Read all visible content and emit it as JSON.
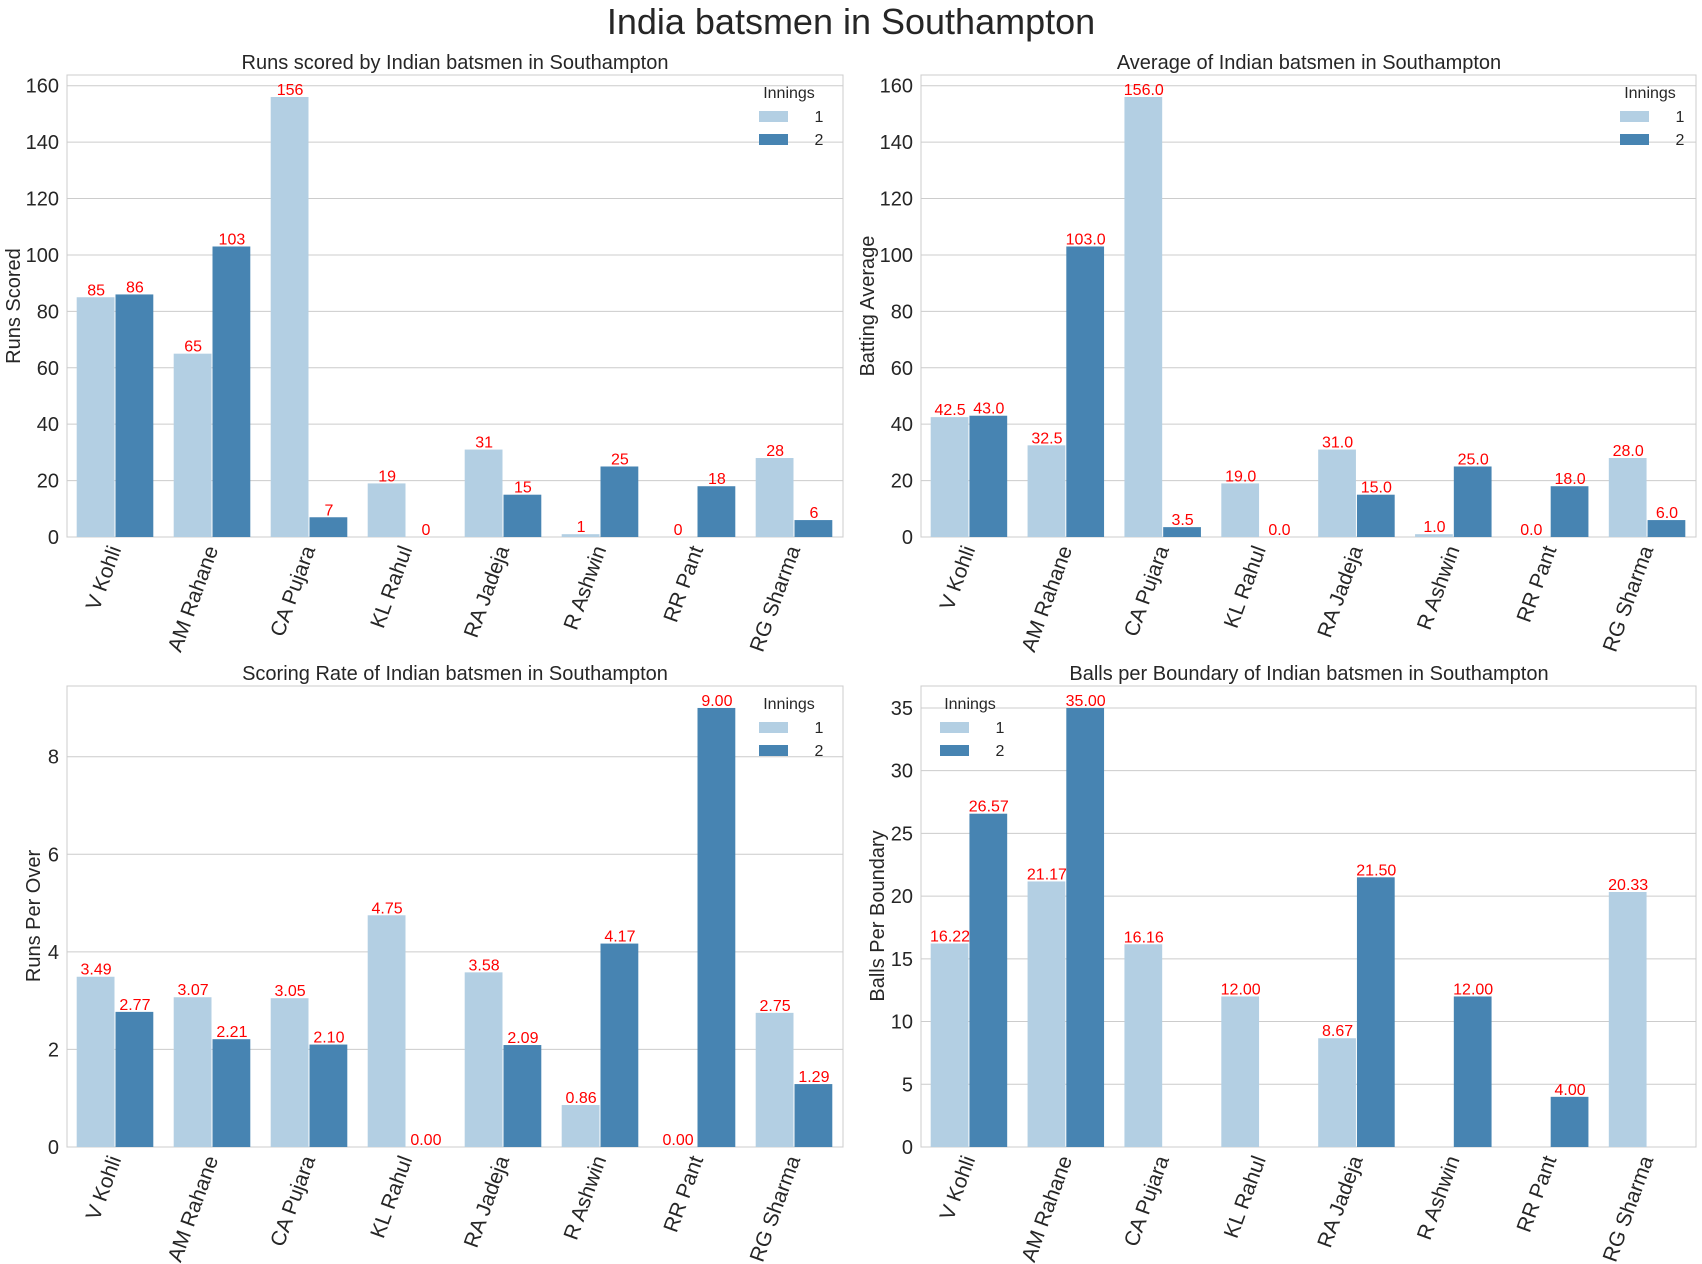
{
  "figure": {
    "title": "India batsmen in Southampton"
  },
  "colors": {
    "innings_1": "#b3cfe3",
    "innings_2": "#4784b2",
    "data_label": "#ff0000",
    "grid": "#cccccc"
  },
  "chart_data": [
    {
      "type": "bar",
      "title": "Runs scored by Indian batsmen in Southampton",
      "xlabel": "",
      "ylabel": "Runs Scored",
      "ylim": [
        0,
        163.8
      ],
      "yticks": [
        0,
        20,
        40,
        60,
        80,
        100,
        120,
        140,
        160
      ],
      "grid": true,
      "legend_title": "Innings",
      "legend_position": "top-right",
      "categories": [
        "V Kohli",
        "AM Rahane",
        "CA Pujara",
        "KL Rahul",
        "RA Jadeja",
        "R Ashwin",
        "RR Pant",
        "RG Sharma"
      ],
      "series": [
        {
          "name": "1",
          "values": [
            85,
            65,
            156,
            19,
            31,
            1,
            0,
            28
          ],
          "labels": [
            "85",
            "65",
            "156",
            "19",
            "31",
            "1",
            "0",
            "28"
          ]
        },
        {
          "name": "2",
          "values": [
            86,
            103,
            7,
            0,
            15,
            25,
            18,
            6
          ],
          "labels": [
            "86",
            "103",
            "7",
            "0",
            "15",
            "25",
            "18",
            "6"
          ]
        }
      ]
    },
    {
      "type": "bar",
      "title": "Average of Indian batsmen in Southampton",
      "xlabel": "",
      "ylabel": "Batting Average",
      "ylim": [
        0,
        163.8
      ],
      "yticks": [
        0,
        20,
        40,
        60,
        80,
        100,
        120,
        140,
        160
      ],
      "grid": true,
      "legend_title": "Innings",
      "legend_position": "top-right",
      "categories": [
        "V Kohli",
        "AM Rahane",
        "CA Pujara",
        "KL Rahul",
        "RA Jadeja",
        "R Ashwin",
        "RR Pant",
        "RG Sharma"
      ],
      "series": [
        {
          "name": "1",
          "values": [
            42.5,
            32.5,
            156.0,
            19.0,
            31.0,
            1.0,
            0.0,
            28.0
          ],
          "labels": [
            "42.5",
            "32.5",
            "156.0",
            "19.0",
            "31.0",
            "1.0",
            "0.0",
            "28.0"
          ]
        },
        {
          "name": "2",
          "values": [
            43.0,
            103.0,
            3.5,
            0.0,
            15.0,
            25.0,
            18.0,
            6.0
          ],
          "labels": [
            "43.0",
            "103.0",
            "3.5",
            "0.0",
            "15.0",
            "25.0",
            "18.0",
            "6.0"
          ]
        }
      ]
    },
    {
      "type": "bar",
      "title": "Scoring Rate of Indian batsmen in Southampton",
      "xlabel": "",
      "ylabel": "Runs Per Over",
      "ylim": [
        0,
        9.45
      ],
      "yticks": [
        0,
        2,
        4,
        6,
        8
      ],
      "grid": true,
      "legend_title": "Innings",
      "legend_position": "top-right",
      "categories": [
        "V Kohli",
        "AM Rahane",
        "CA Pujara",
        "KL Rahul",
        "RA Jadeja",
        "R Ashwin",
        "RR Pant",
        "RG Sharma"
      ],
      "series": [
        {
          "name": "1",
          "values": [
            3.49,
            3.07,
            3.05,
            4.75,
            3.58,
            0.86,
            0.0,
            2.75
          ],
          "labels": [
            "3.49",
            "3.07",
            "3.05",
            "4.75",
            "3.58",
            "0.86",
            "0.00",
            "2.75"
          ]
        },
        {
          "name": "2",
          "values": [
            2.77,
            2.21,
            2.1,
            0.0,
            2.09,
            4.17,
            9.0,
            1.29
          ],
          "labels": [
            "2.77",
            "2.21",
            "2.10",
            "0.00",
            "2.09",
            "4.17",
            "9.00",
            "1.29"
          ]
        }
      ]
    },
    {
      "type": "bar",
      "title": "Balls per Boundary of Indian batsmen in Southampton",
      "xlabel": "",
      "ylabel": "Balls Per Boundary",
      "ylim": [
        0,
        36.75
      ],
      "yticks": [
        0,
        5,
        10,
        15,
        20,
        25,
        30,
        35
      ],
      "grid": true,
      "legend_title": "Innings",
      "legend_position": "top-left",
      "categories": [
        "V Kohli",
        "AM Rahane",
        "CA Pujara",
        "KL Rahul",
        "RA Jadeja",
        "R Ashwin",
        "RR Pant",
        "RG Sharma"
      ],
      "series": [
        {
          "name": "1",
          "values": [
            16.22,
            21.17,
            16.16,
            12.0,
            8.67,
            null,
            null,
            20.33
          ],
          "labels": [
            "16.22",
            "21.17",
            "16.16",
            "12.00",
            "8.67",
            null,
            null,
            "20.33"
          ]
        },
        {
          "name": "2",
          "values": [
            26.57,
            35.0,
            null,
            null,
            21.5,
            12.0,
            4.0,
            null
          ],
          "labels": [
            "26.57",
            "35.00",
            null,
            null,
            "21.50",
            "12.00",
            "4.00",
            null
          ]
        }
      ]
    }
  ]
}
